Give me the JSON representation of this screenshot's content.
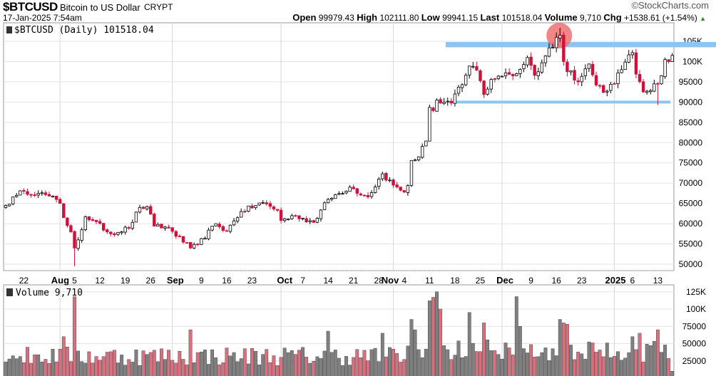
{
  "header": {
    "symbol": "$BTCUSD",
    "name": "Bitcoin to US Dollar",
    "exchange": "CRYPT",
    "brand": "©StockCharts.com",
    "datetime": "17-Jan-2025 7:54am",
    "open_label": "Open",
    "open": "99979.43",
    "high_label": "High",
    "high": "102111.80",
    "low_label": "Low",
    "low": "99941.15",
    "last_label": "Last",
    "last": "101518.04",
    "volume_label": "Volume",
    "volume": "9,710",
    "chg_label": "Chg",
    "chg": "+1538.61 (+1.54%)"
  },
  "colors": {
    "up": "#000000",
    "down": "#d0103a",
    "vol_up": "#808080",
    "vol_down": "#d97080",
    "band": "#8cc4f2",
    "circle": "#f07070"
  },
  "chart_data": [
    {
      "type": "candlestick",
      "title": "$BTCUSD (Daily) 101518.04",
      "start_date": "2024-07-17",
      "end_date": "2025-01-17",
      "ylim": [
        47000,
        108000
      ],
      "y_ticks": [
        50000,
        55000,
        60000,
        65000,
        70000,
        75000,
        80000,
        85000,
        90000,
        95000,
        100000,
        105000
      ],
      "y_tick_labels": [
        "50000",
        "55000",
        "60000",
        "65000",
        "70000",
        "75000",
        "80000",
        "85000",
        "90000",
        "95000",
        "100K",
        "105K"
      ],
      "close_keypoints": [
        [
          "2024-07-17",
          64.5
        ],
        [
          "2024-07-20",
          67
        ],
        [
          "2024-07-22",
          68
        ],
        [
          "2024-07-26",
          67.5
        ],
        [
          "2024-07-29",
          66.8
        ],
        [
          "2024-08-01",
          65
        ],
        [
          "2024-08-02",
          61.5
        ],
        [
          "2024-08-04",
          58
        ],
        [
          "2024-08-05",
          54
        ],
        [
          "2024-08-06",
          56
        ],
        [
          "2024-08-08",
          61.7
        ],
        [
          "2024-08-10",
          60.8
        ],
        [
          "2024-08-15",
          57.5
        ],
        [
          "2024-08-20",
          59
        ],
        [
          "2024-08-23",
          64
        ],
        [
          "2024-08-25",
          64.2
        ],
        [
          "2024-08-27",
          59.4
        ],
        [
          "2024-08-31",
          58.9
        ],
        [
          "2024-09-06",
          54
        ],
        [
          "2024-09-08",
          54.8
        ],
        [
          "2024-09-13",
          60
        ],
        [
          "2024-09-16",
          58.2
        ],
        [
          "2024-09-20",
          63
        ],
        [
          "2024-09-26",
          65.2
        ],
        [
          "2024-09-30",
          63.3
        ],
        [
          "2024-10-01",
          60.8
        ],
        [
          "2024-10-05",
          62
        ],
        [
          "2024-10-10",
          60.3
        ],
        [
          "2024-10-14",
          66
        ],
        [
          "2024-10-20",
          69
        ],
        [
          "2024-10-25",
          66.6
        ],
        [
          "2024-10-29",
          72.3
        ],
        [
          "2024-11-01",
          69.5
        ],
        [
          "2024-11-04",
          67.8
        ],
        [
          "2024-11-05",
          69.4
        ],
        [
          "2024-11-06",
          75.6
        ],
        [
          "2024-11-08",
          76.5
        ],
        [
          "2024-11-10",
          80.4
        ],
        [
          "2024-11-11",
          88.7
        ],
        [
          "2024-11-12",
          87.9
        ],
        [
          "2024-11-13",
          90.5
        ],
        [
          "2024-11-17",
          89.8
        ],
        [
          "2024-11-20",
          94.3
        ],
        [
          "2024-11-22",
          98.9
        ],
        [
          "2024-11-24",
          97.9
        ],
        [
          "2024-11-26",
          91.9
        ],
        [
          "2024-11-28",
          95.6
        ],
        [
          "2024-11-30",
          96.4
        ],
        [
          "2024-12-05",
          97
        ],
        [
          "2024-12-08",
          101
        ],
        [
          "2024-12-10",
          96.6
        ],
        [
          "2024-12-13",
          101.4
        ],
        [
          "2024-12-16",
          106
        ],
        [
          "2024-12-17",
          106.5
        ],
        [
          "2024-12-18",
          100
        ],
        [
          "2024-12-19",
          97.5
        ],
        [
          "2024-12-20",
          97.7
        ],
        [
          "2024-12-22",
          95
        ],
        [
          "2024-12-25",
          99.4
        ],
        [
          "2024-12-27",
          94.2
        ],
        [
          "2024-12-30",
          92.7
        ],
        [
          "2025-01-03",
          98
        ],
        [
          "2025-01-06",
          102.2
        ],
        [
          "2025-01-07",
          96.9
        ],
        [
          "2025-01-09",
          92.5
        ],
        [
          "2025-01-13",
          94.5
        ],
        [
          "2025-01-14",
          96.5
        ],
        [
          "2025-01-15",
          100.5
        ],
        [
          "2025-01-16",
          99.98
        ],
        [
          "2025-01-17",
          101.518
        ]
      ],
      "annotations": {
        "resistance_band": [
          103000,
          105000
        ],
        "support_line": 90000,
        "highlight_date": "2024-12-17"
      }
    },
    {
      "type": "bar",
      "title": "Volume 9,710",
      "ylim": [
        0,
        130000
      ],
      "y_ticks": [
        25000,
        50000,
        75000,
        100000,
        125000
      ],
      "y_tick_labels": [
        "25000",
        "50000",
        "75000",
        "100K",
        "125K"
      ],
      "volume_spikes": [
        [
          "2024-08-05",
          118000
        ],
        [
          "2024-08-02",
          60000
        ],
        [
          "2024-09-06",
          70000
        ],
        [
          "2024-10-14",
          68000
        ],
        [
          "2024-10-29",
          65000
        ],
        [
          "2024-11-06",
          85000
        ],
        [
          "2024-11-07",
          70000
        ],
        [
          "2024-11-11",
          112000
        ],
        [
          "2024-11-12",
          117000
        ],
        [
          "2024-11-13",
          125000
        ],
        [
          "2024-11-14",
          100000
        ],
        [
          "2024-11-22",
          95000
        ],
        [
          "2024-11-26",
          80000
        ],
        [
          "2024-12-05",
          118000
        ],
        [
          "2024-12-06",
          75000
        ],
        [
          "2024-12-17",
          85000
        ],
        [
          "2024-12-18",
          80000
        ],
        [
          "2024-12-19",
          78000
        ],
        [
          "2025-01-06",
          60000
        ],
        [
          "2025-01-08",
          65000
        ],
        [
          "2025-01-13",
          70000
        ],
        [
          "2025-01-17",
          10000
        ]
      ]
    }
  ],
  "x_ticks": [
    [
      "2024-07-22",
      "22",
      false
    ],
    [
      "2024-08-01",
      "Aug",
      true
    ],
    [
      "2024-08-05",
      "5",
      false
    ],
    [
      "2024-08-12",
      "12",
      false
    ],
    [
      "2024-08-19",
      "19",
      false
    ],
    [
      "2024-08-26",
      "26",
      false
    ],
    [
      "2024-09-01",
      "Sep",
      true
    ],
    [
      "2024-09-09",
      "9",
      false
    ],
    [
      "2024-09-16",
      "16",
      false
    ],
    [
      "2024-09-23",
      "23",
      false
    ],
    [
      "2024-10-01",
      "Oct",
      true
    ],
    [
      "2024-10-07",
      "7",
      false
    ],
    [
      "2024-10-14",
      "14",
      false
    ],
    [
      "2024-10-21",
      "21",
      false
    ],
    [
      "2024-10-28",
      "28",
      false
    ],
    [
      "2024-11-01",
      "Nov",
      true
    ],
    [
      "2024-11-04",
      "4",
      false
    ],
    [
      "2024-11-11",
      "11",
      false
    ],
    [
      "2024-11-18",
      "18",
      false
    ],
    [
      "2024-11-25",
      "25",
      false
    ],
    [
      "2024-12-01",
      "Dec",
      true
    ],
    [
      "2024-12-09",
      "9",
      false
    ],
    [
      "2024-12-16",
      "16",
      false
    ],
    [
      "2024-12-23",
      "23",
      false
    ],
    [
      "2025-01-01",
      "2025",
      true
    ],
    [
      "2025-01-06",
      "6",
      false
    ],
    [
      "2025-01-13",
      "13",
      false
    ]
  ]
}
